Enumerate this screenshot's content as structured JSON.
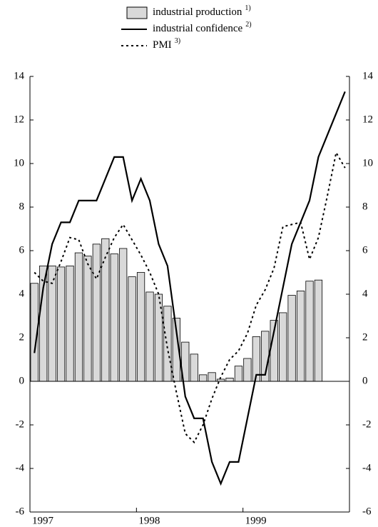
{
  "chart_data": {
    "type": "bar",
    "categories": [
      "1997",
      null,
      null,
      null,
      null,
      null,
      null,
      null,
      null,
      null,
      null,
      null,
      "1998",
      null,
      null,
      null,
      null,
      null,
      null,
      null,
      null,
      null,
      null,
      null,
      "1999",
      null,
      null,
      null,
      null,
      null,
      null,
      null,
      null,
      null,
      null,
      null
    ],
    "series": [
      {
        "name": "industrial production",
        "note": "1)",
        "type": "bar",
        "color": "#d9d9d9",
        "values": [
          4.5,
          5.3,
          5.3,
          5.25,
          5.3,
          5.9,
          5.75,
          6.3,
          6.55,
          5.85,
          6.1,
          4.8,
          5.0,
          4.1,
          4.0,
          3.45,
          2.9,
          1.8,
          1.25,
          0.3,
          0.4,
          0.1,
          0.15,
          0.7,
          1.05,
          2.05,
          2.3,
          2.8,
          3.15,
          3.95,
          4.15,
          4.6,
          4.65,
          null,
          null,
          null
        ]
      },
      {
        "name": "industrial confidence",
        "note": "2)",
        "type": "line",
        "color": "#000000",
        "dash": "solid",
        "values": [
          1.3,
          4.3,
          6.3,
          7.3,
          7.3,
          8.3,
          8.3,
          8.3,
          9.3,
          10.3,
          10.3,
          8.3,
          9.3,
          8.3,
          6.3,
          5.3,
          2.3,
          -0.7,
          -1.7,
          -1.7,
          -3.7,
          -4.7,
          -3.7,
          -3.7,
          -1.7,
          0.3,
          0.3,
          2.3,
          4.3,
          6.3,
          7.3,
          8.3,
          10.3,
          11.3,
          12.3,
          13.3
        ]
      },
      {
        "name": "PMI",
        "note": "3)",
        "type": "line",
        "color": "#000000",
        "dash": "dotted",
        "values": [
          5.0,
          4.6,
          4.5,
          5.5,
          6.6,
          6.5,
          5.4,
          4.7,
          5.7,
          6.6,
          7.2,
          6.5,
          5.8,
          5.0,
          4.0,
          1.5,
          -0.5,
          -2.4,
          -2.8,
          -2.0,
          -0.8,
          0.2,
          1.0,
          1.4,
          2.2,
          3.5,
          4.2,
          5.2,
          7.1,
          7.2,
          7.3,
          5.6,
          6.6,
          8.5,
          10.5,
          9.8
        ]
      }
    ],
    "ylim": [
      -6,
      14
    ],
    "yticks": [
      -6,
      -4,
      -2,
      0,
      2,
      4,
      6,
      8,
      10,
      12,
      14
    ],
    "y2lim": [
      -6,
      14
    ],
    "y2ticks": [
      -6,
      -4,
      -2,
      0,
      2,
      4,
      6,
      8,
      10,
      12,
      14
    ]
  }
}
